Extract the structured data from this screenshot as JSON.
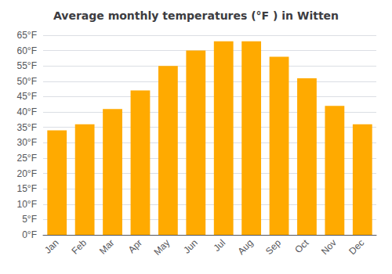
{
  "chart_data": {
    "type": "bar",
    "title": "Average monthly temperatures (°F ) in Witten",
    "categories": [
      "Jan",
      "Feb",
      "Mar",
      "Apr",
      "May",
      "Jun",
      "Jul",
      "Aug",
      "Sep",
      "Oct",
      "Nov",
      "Dec"
    ],
    "values": [
      34,
      36,
      41,
      47,
      55,
      60,
      63,
      63,
      58,
      51,
      42,
      36
    ],
    "color": "#FFAA00",
    "ylim": [
      0,
      65
    ],
    "yticks": [
      {
        "value": 0,
        "label": "0°F"
      },
      {
        "value": 5,
        "label": "5°F"
      },
      {
        "value": 10,
        "label": "10°F"
      },
      {
        "value": 15,
        "label": "15°F"
      },
      {
        "value": 20,
        "label": "20°F"
      },
      {
        "value": 25,
        "label": "25°F"
      },
      {
        "value": 30,
        "label": "30°F"
      },
      {
        "value": 35,
        "label": "35°F"
      },
      {
        "value": 40,
        "label": "40°F"
      },
      {
        "value": 45,
        "label": "45°F"
      },
      {
        "value": 50,
        "label": "50°F"
      },
      {
        "value": 55,
        "label": "55°F"
      },
      {
        "value": 60,
        "label": "60°F"
      },
      {
        "value": 65,
        "label": "65°F"
      }
    ],
    "grid": true
  }
}
